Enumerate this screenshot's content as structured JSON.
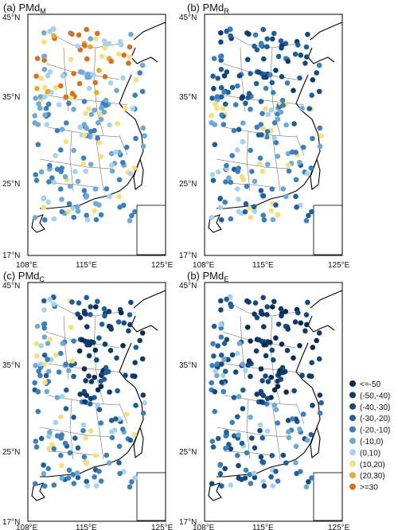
{
  "figure": {
    "panels": [
      {
        "id": "a",
        "title": "(a) PMd",
        "subscript": "M"
      },
      {
        "id": "b",
        "title": "(b) PMd",
        "subscript": "R"
      },
      {
        "id": "c",
        "title": "(c) PMd",
        "subscript": "C"
      },
      {
        "id": "d",
        "title": "(b) PMd",
        "subscript": "E"
      }
    ],
    "y_ticks": [
      "45°N",
      "35°N",
      "25°N",
      "17°N"
    ],
    "x_ticks": [
      "108°E",
      "115°E",
      "125°E"
    ],
    "legend": {
      "items": [
        {
          "label": "<=-50",
          "color": "#0b2a52"
        },
        {
          "label": "(-50,-40)",
          "color": "#0f3a6b"
        },
        {
          "label": "(-40,-30)",
          "color": "#15487f"
        },
        {
          "label": "(-30,-20)",
          "color": "#1f5f9c"
        },
        {
          "label": "(-20,-10)",
          "color": "#3b7fbd"
        },
        {
          "label": "(-10,0)",
          "color": "#6ea9d8"
        },
        {
          "label": "(0,10)",
          "color": "#a6d2ef"
        },
        {
          "label": "(10,20)",
          "color": "#f7e07a"
        },
        {
          "label": "(20,30)",
          "color": "#e9a92c"
        },
        {
          "label": ">=30",
          "color": "#d9701b"
        }
      ]
    }
  }
}
